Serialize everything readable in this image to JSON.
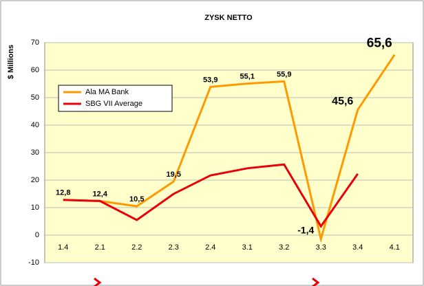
{
  "chart_data": {
    "type": "line",
    "title": "ZYSK NETTO",
    "y_label": "$ Millions",
    "categories": [
      "1.4",
      "2.1",
      "2.2",
      "2.3",
      "2.4",
      "3.1",
      "3.2",
      "3.3",
      "3.4",
      "4.1"
    ],
    "series": [
      {
        "name": "Ala MA Bank",
        "color": "#ff9900",
        "values": [
          12.8,
          12.4,
          10.5,
          19.5,
          53.9,
          55.1,
          55.9,
          -1.4,
          45.6,
          65.6
        ],
        "value_labels": [
          "12,8",
          "12,4",
          "10,5",
          "19,5",
          "53,9",
          "55,1",
          "55,9",
          "-1,4",
          "45,6",
          "65,6"
        ]
      },
      {
        "name": "SBG VII Average",
        "color": "#e8000b",
        "values": [
          12.8,
          12.4,
          5.5,
          15,
          21.7,
          24.3,
          25.7,
          3.2,
          22.3,
          null
        ]
      }
    ],
    "ylim": [
      -10,
      70
    ],
    "yticks": [
      -10,
      0,
      10,
      20,
      30,
      40,
      50,
      60,
      70
    ],
    "grid": true,
    "legend": "upper-left"
  }
}
